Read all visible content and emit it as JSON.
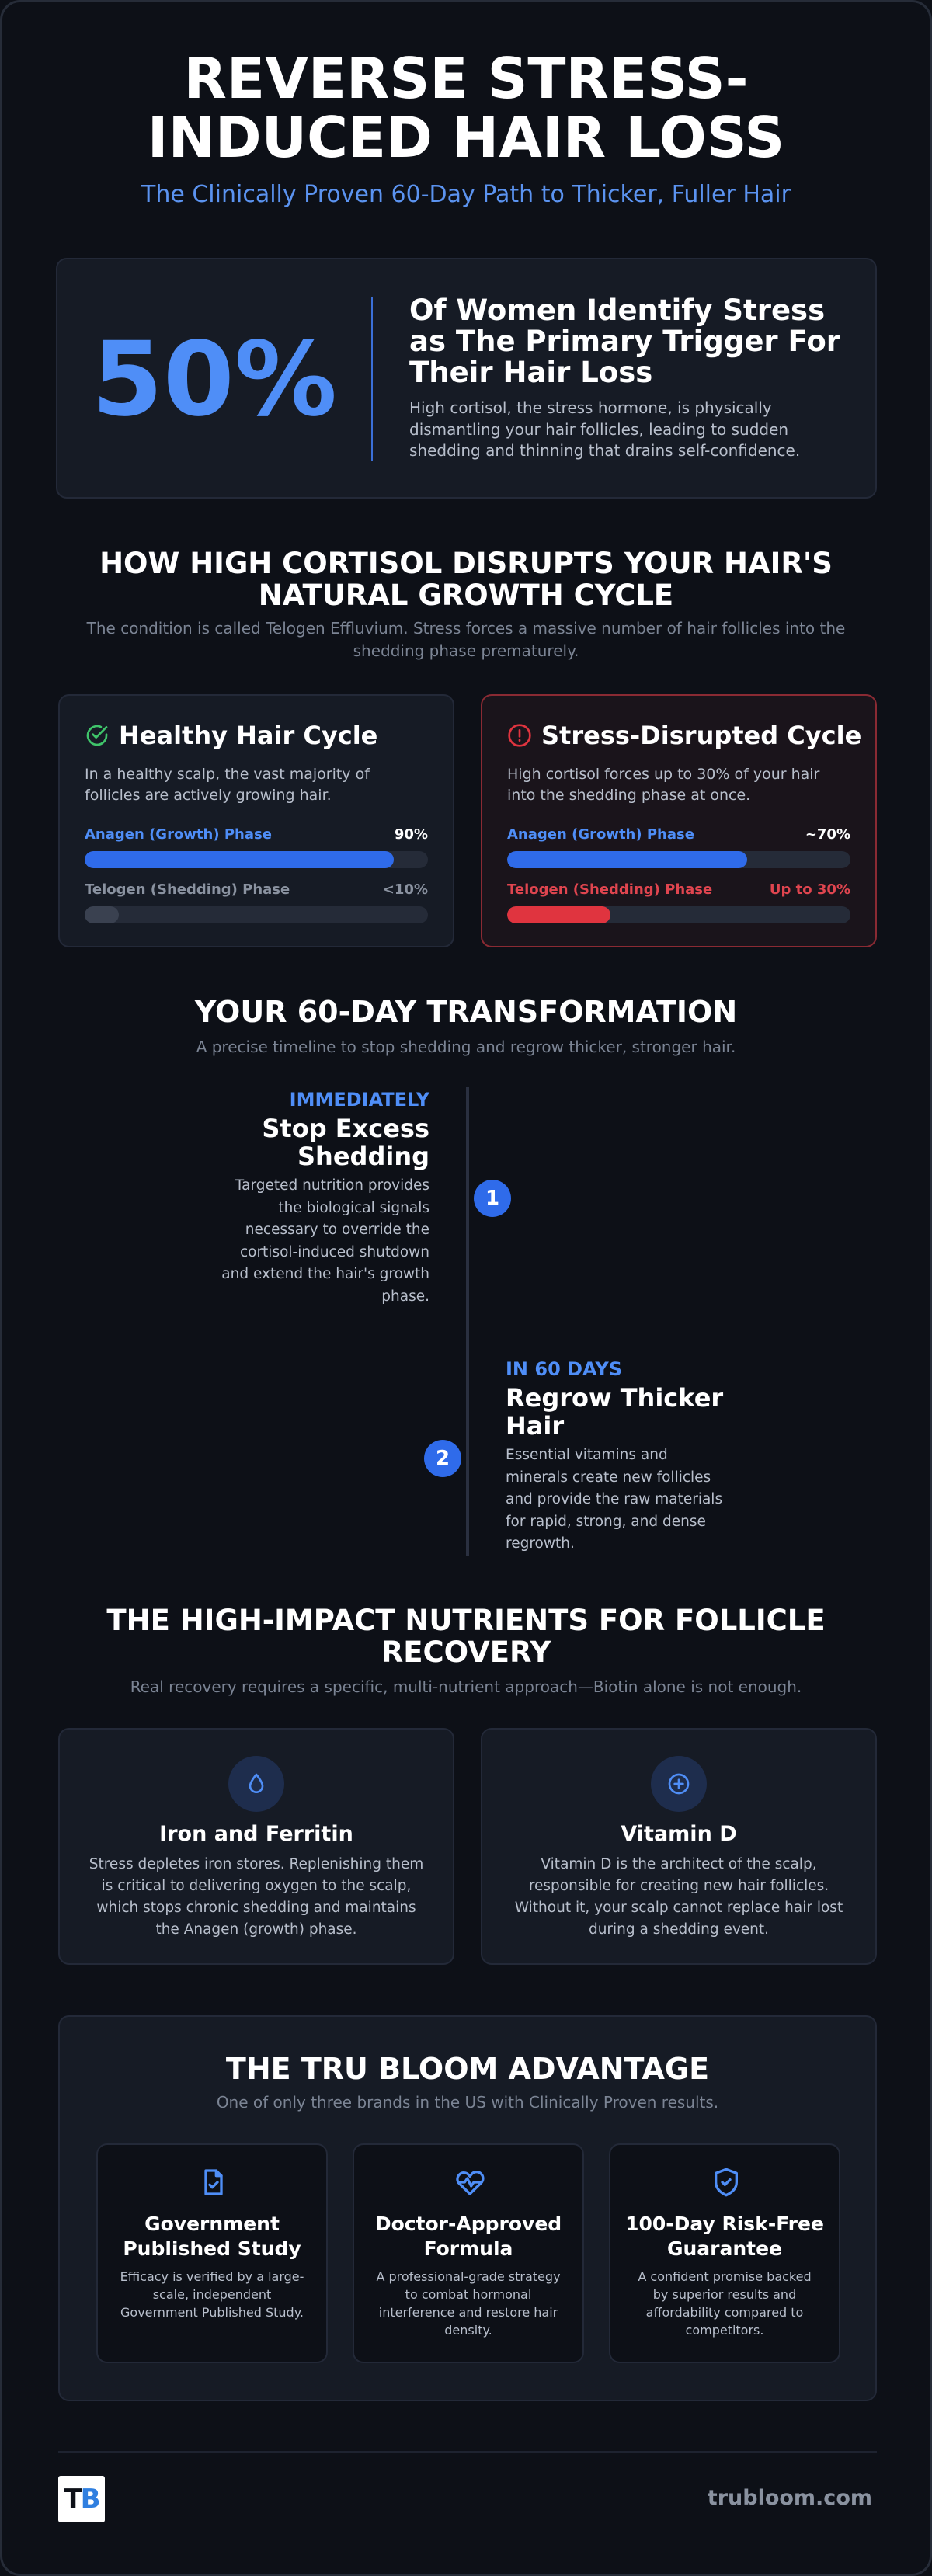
{
  "header": {
    "title": "REVERSE STRESS-INDUCED HAIR LOSS",
    "subtitle": "The Clinically Proven 60-Day Path to Thicker, Fuller Hair"
  },
  "stat": {
    "value": "50%",
    "heading": "Of Women Identify Stress as The Primary Trigger For Their Hair Loss",
    "description": "High cortisol, the stress hormone, is physically dismantling your hair follicles, leading to sudden shedding and thinning that drains self-confidence."
  },
  "cycle": {
    "heading": "HOW HIGH CORTISOL DISRUPTS YOUR HAIR'S NATURAL GROWTH CYCLE",
    "subtext": "The condition is called Telogen Effluvium. Stress forces a massive number of hair follicles into the shedding phase prematurely.",
    "cards": [
      {
        "title": "Healthy Hair Cycle",
        "description": "In a healthy scalp, the vast majority of follicles are actively growing hair.",
        "bars": [
          {
            "label": "Anagen (Growth) Phase",
            "value_label": "90%",
            "value": 90
          },
          {
            "label": "Telogen (Shedding) Phase",
            "value_label": "<10%",
            "value": 10
          }
        ]
      },
      {
        "title": "Stress-Disrupted Cycle",
        "description": "High cortisol forces up to 30% of your hair into the shedding phase at once.",
        "bars": [
          {
            "label": "Anagen (Growth) Phase",
            "value_label": "~70%",
            "value": 70
          },
          {
            "label": "Telogen (Shedding) Phase",
            "value_label": "Up to 30%",
            "value": 30
          }
        ]
      }
    ]
  },
  "timeline": {
    "heading": "YOUR 60-DAY TRANSFORMATION",
    "subtext": "A precise timeline to stop shedding and regrow thicker, stronger hair.",
    "steps": [
      {
        "number": "1",
        "when": "IMMEDIATELY",
        "title": "Stop Excess Shedding",
        "description": "Targeted nutrition provides the biological signals necessary to override the cortisol-induced shutdown and extend the hair's growth phase."
      },
      {
        "number": "2",
        "when": "IN 60 DAYS",
        "title": "Regrow Thicker Hair",
        "description": "Essential vitamins and minerals create new follicles and provide the raw materials for rapid, strong, and dense regrowth."
      }
    ]
  },
  "nutrients": {
    "heading": "THE HIGH-IMPACT NUTRIENTS FOR FOLLICLE RECOVERY",
    "subtext": "Real recovery requires a specific, multi-nutrient approach—Biotin alone is not enough.",
    "items": [
      {
        "title": "Iron and Ferritin",
        "description": "Stress depletes iron stores. Replenishing them is critical to delivering oxygen to the scalp, which stops chronic shedding and maintains the Anagen (growth) phase."
      },
      {
        "title": "Vitamin D",
        "description": "Vitamin D is the architect of the scalp, responsible for creating new hair follicles. Without it, your scalp cannot replace hair lost during a shedding event."
      }
    ]
  },
  "advantage": {
    "heading": "THE TRU BLOOM ADVANTAGE",
    "subtext": "One of only three brands in the US with Clinically Proven results.",
    "items": [
      {
        "title": "Government Published Study",
        "description": "Efficacy is verified by a large-scale, independent Government Published Study."
      },
      {
        "title": "Doctor-Approved Formula",
        "description": "A professional-grade strategy to combat hormonal interference and restore hair density."
      },
      {
        "title": "100-Day Risk-Free Guarantee",
        "description": "A confident promise backed by superior results and affordability compared to competitors."
      }
    ]
  },
  "footer": {
    "logo": [
      "T",
      "B"
    ],
    "url": "trubloom.com"
  }
}
